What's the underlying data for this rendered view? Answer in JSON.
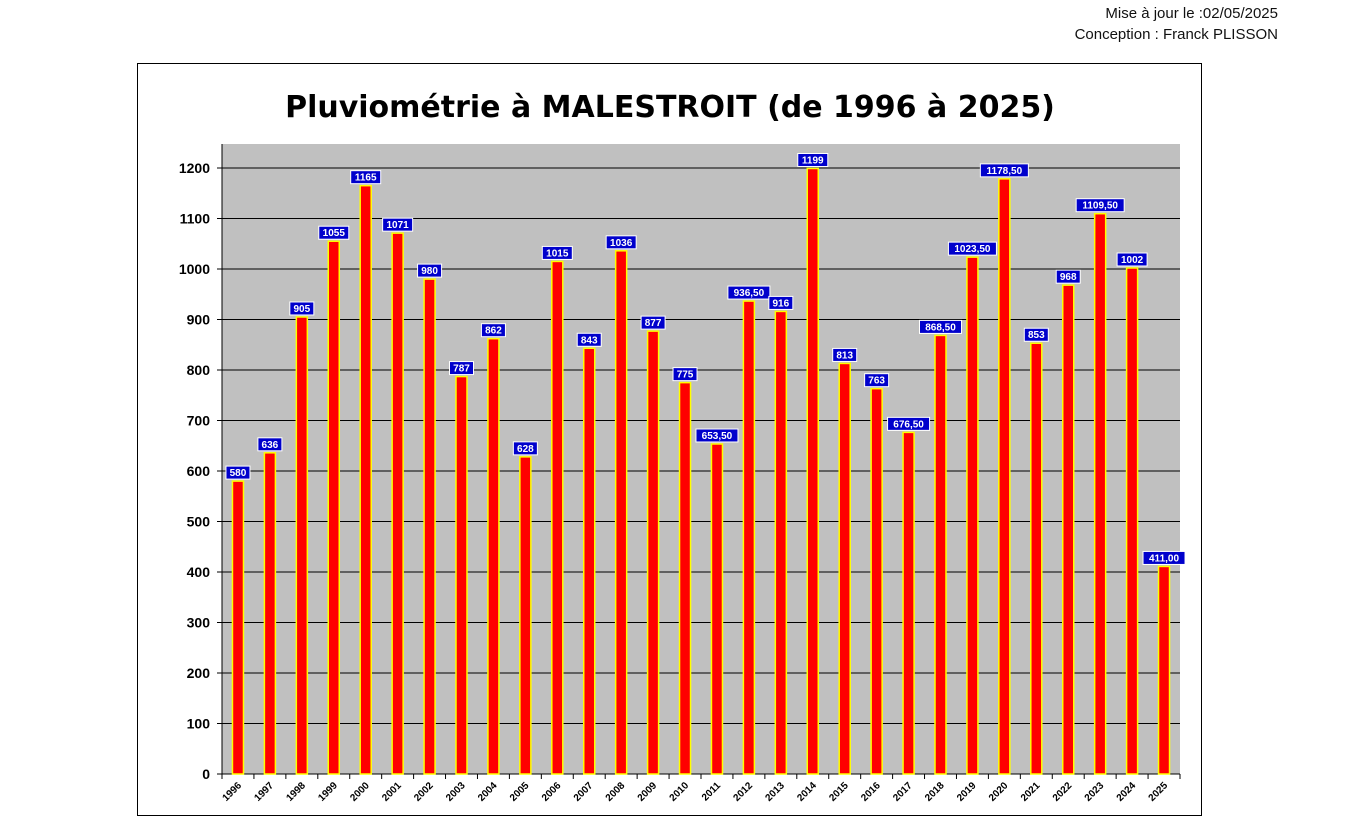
{
  "header": {
    "update": "Mise à jour le :02/05/2025",
    "author": "Conception : Franck PLISSON"
  },
  "colors": {
    "plot_background": "#c0c0c0",
    "bar_fill": "#ff0000",
    "bar_border": "#ffff00",
    "label_background": "#0000cc",
    "label_text": "#ffffff",
    "gridline": "#000000"
  },
  "chart_data": {
    "type": "bar",
    "title": "Pluviométrie à MALESTROIT (de 1996 à 2025)",
    "xlabel": "",
    "ylabel": "",
    "ylim": [
      0,
      1200
    ],
    "ytick_step": 100,
    "grid": true,
    "categories": [
      "1996",
      "1997",
      "1998",
      "1999",
      "2000",
      "2001",
      "2002",
      "2003",
      "2004",
      "2005",
      "2006",
      "2007",
      "2008",
      "2009",
      "2010",
      "2011",
      "2012",
      "2013",
      "2014",
      "2015",
      "2016",
      "2017",
      "2018",
      "2019",
      "2020",
      "2021",
      "2022",
      "2023",
      "2024",
      "2025"
    ],
    "values": [
      580,
      636,
      905,
      1055,
      1165,
      1071,
      980,
      787,
      862,
      628,
      1015,
      843,
      1036,
      877,
      775,
      653.5,
      936.5,
      916,
      1199,
      813,
      763,
      676.5,
      868.5,
      1023.5,
      1178.5,
      853,
      968,
      1109.5,
      1002,
      411
    ],
    "data_labels": [
      "580",
      "636",
      "905",
      "1055",
      "1165",
      "1071",
      "980",
      "787",
      "862",
      "628",
      "1015",
      "843",
      "1036",
      "877",
      "775",
      "653,50",
      "936,50",
      "916",
      "1199",
      "813",
      "763",
      "676,50",
      "868,50",
      "1023,50",
      "1178,50",
      "853",
      "968",
      "1109,50",
      "1002",
      "411,00"
    ]
  }
}
